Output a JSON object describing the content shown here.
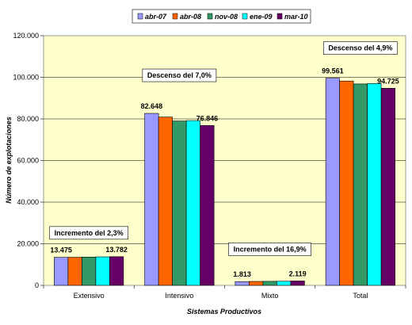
{
  "chart_data": {
    "type": "bar",
    "title": "",
    "xlabel": "Sistemas Productivos",
    "ylabel": "Número de explotaciones",
    "ylim": [
      0,
      120000
    ],
    "ytick_step": 20000,
    "ytick_labels": [
      "0",
      "20.000",
      "40.000",
      "60.000",
      "80.000",
      "100.000",
      "120.000"
    ],
    "grid": true,
    "plot_background": "#FFFFCC",
    "legend_position": "top",
    "categories": [
      "Extensivo",
      "Intensivo",
      "Mixto",
      "Total"
    ],
    "series": [
      {
        "name": "abr-07",
        "color": "#9999FF",
        "values": [
          13475,
          82648,
          1813,
          99561
        ]
      },
      {
        "name": "abr-08",
        "color": "#FF6600",
        "values": [
          13500,
          80900,
          1900,
          98200
        ]
      },
      {
        "name": "nov-08",
        "color": "#339966",
        "values": [
          13600,
          79000,
          1950,
          96800
        ]
      },
      {
        "name": "ene-09",
        "color": "#00FFFF",
        "values": [
          13700,
          79200,
          2000,
          97000
        ]
      },
      {
        "name": "mar-10",
        "color": "#660066",
        "values": [
          13782,
          76846,
          2119,
          94725
        ]
      }
    ],
    "data_labels": [
      {
        "category": 0,
        "series": 0,
        "text": "13.475"
      },
      {
        "category": 0,
        "series": 4,
        "text": "13.782"
      },
      {
        "category": 1,
        "series": 0,
        "text": "82.648"
      },
      {
        "category": 1,
        "series": 4,
        "text": "76.846"
      },
      {
        "category": 2,
        "series": 0,
        "text": "1.813"
      },
      {
        "category": 2,
        "series": 4,
        "text": "2.119"
      },
      {
        "category": 3,
        "series": 0,
        "text": "99.561"
      },
      {
        "category": 3,
        "series": 4,
        "text": "94.725"
      }
    ],
    "annotations": [
      {
        "category": 0,
        "text": "Incremento del 2,3%"
      },
      {
        "category": 1,
        "text": "Descenso del 7,0%"
      },
      {
        "category": 2,
        "text": "Incremento del 16,9%"
      },
      {
        "category": 3,
        "text": "Descenso del 4,9%"
      }
    ]
  }
}
